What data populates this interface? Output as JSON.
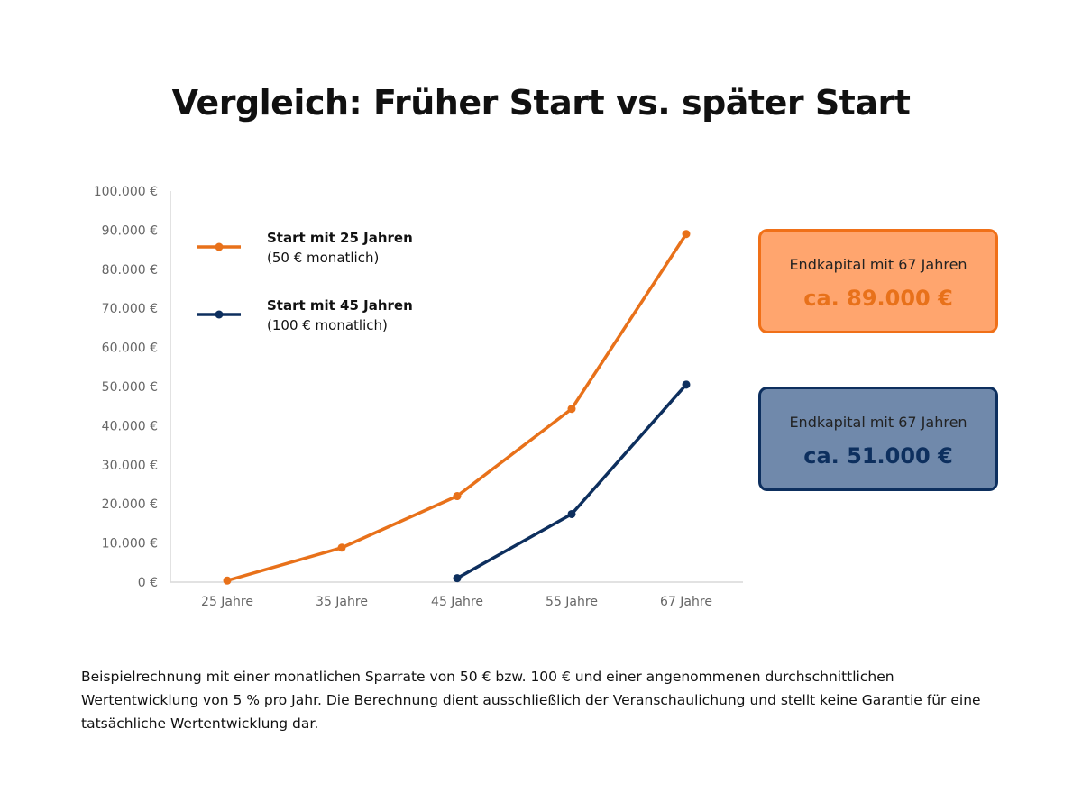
{
  "chart_data": {
    "type": "line",
    "title": "Vergleich: Früher Start vs. später Start",
    "categories": [
      "25 Jahre",
      "35 Jahre",
      "45 Jahre",
      "55 Jahre",
      "67 Jahre"
    ],
    "y_ticks": [
      "0 €",
      "10.000 €",
      "20.000 €",
      "30.000 €",
      "40.000 €",
      "50.000 €",
      "60.000 €",
      "70.000 €",
      "80.000 €",
      "90.000 €",
      "100.000 €"
    ],
    "ylim": [
      0,
      100000
    ],
    "grid": false,
    "legend_position": "top-left",
    "series": [
      {
        "name": "Start mit 25 Jahren",
        "subtitle": "(50 € monatlich)",
        "color": "#E8711A",
        "values": [
          400,
          8800,
          22000,
          44300,
          89000
        ]
      },
      {
        "name": "Start mit 45 Jahren",
        "subtitle": "(100 € monatlich)",
        "color": "#0D2F5E",
        "values": [
          null,
          null,
          1000,
          17400,
          50500
        ]
      }
    ]
  },
  "callouts": [
    {
      "label": "Endkapital mit 67 Jahren",
      "value": "ca. 89.000 €",
      "bg": "#FFA56E",
      "border": "#F07018",
      "value_color": "#E8711A"
    },
    {
      "label": "Endkapital mit 67 Jahren",
      "value": "ca. 51.000 €",
      "bg": "#7089AB",
      "border": "#0D2F5E",
      "value_color": "#0D2F5E"
    }
  ],
  "footnote": "Beispielrechnung mit einer monatlichen Sparrate von 50 € bzw. 100 € und einer angenommenen durchschnittlichen Wertentwicklung von 5 % pro Jahr. Die Berechnung dient ausschließlich der Veranschaulichung und stellt keine Garantie für eine tatsächliche Wertentwicklung dar."
}
